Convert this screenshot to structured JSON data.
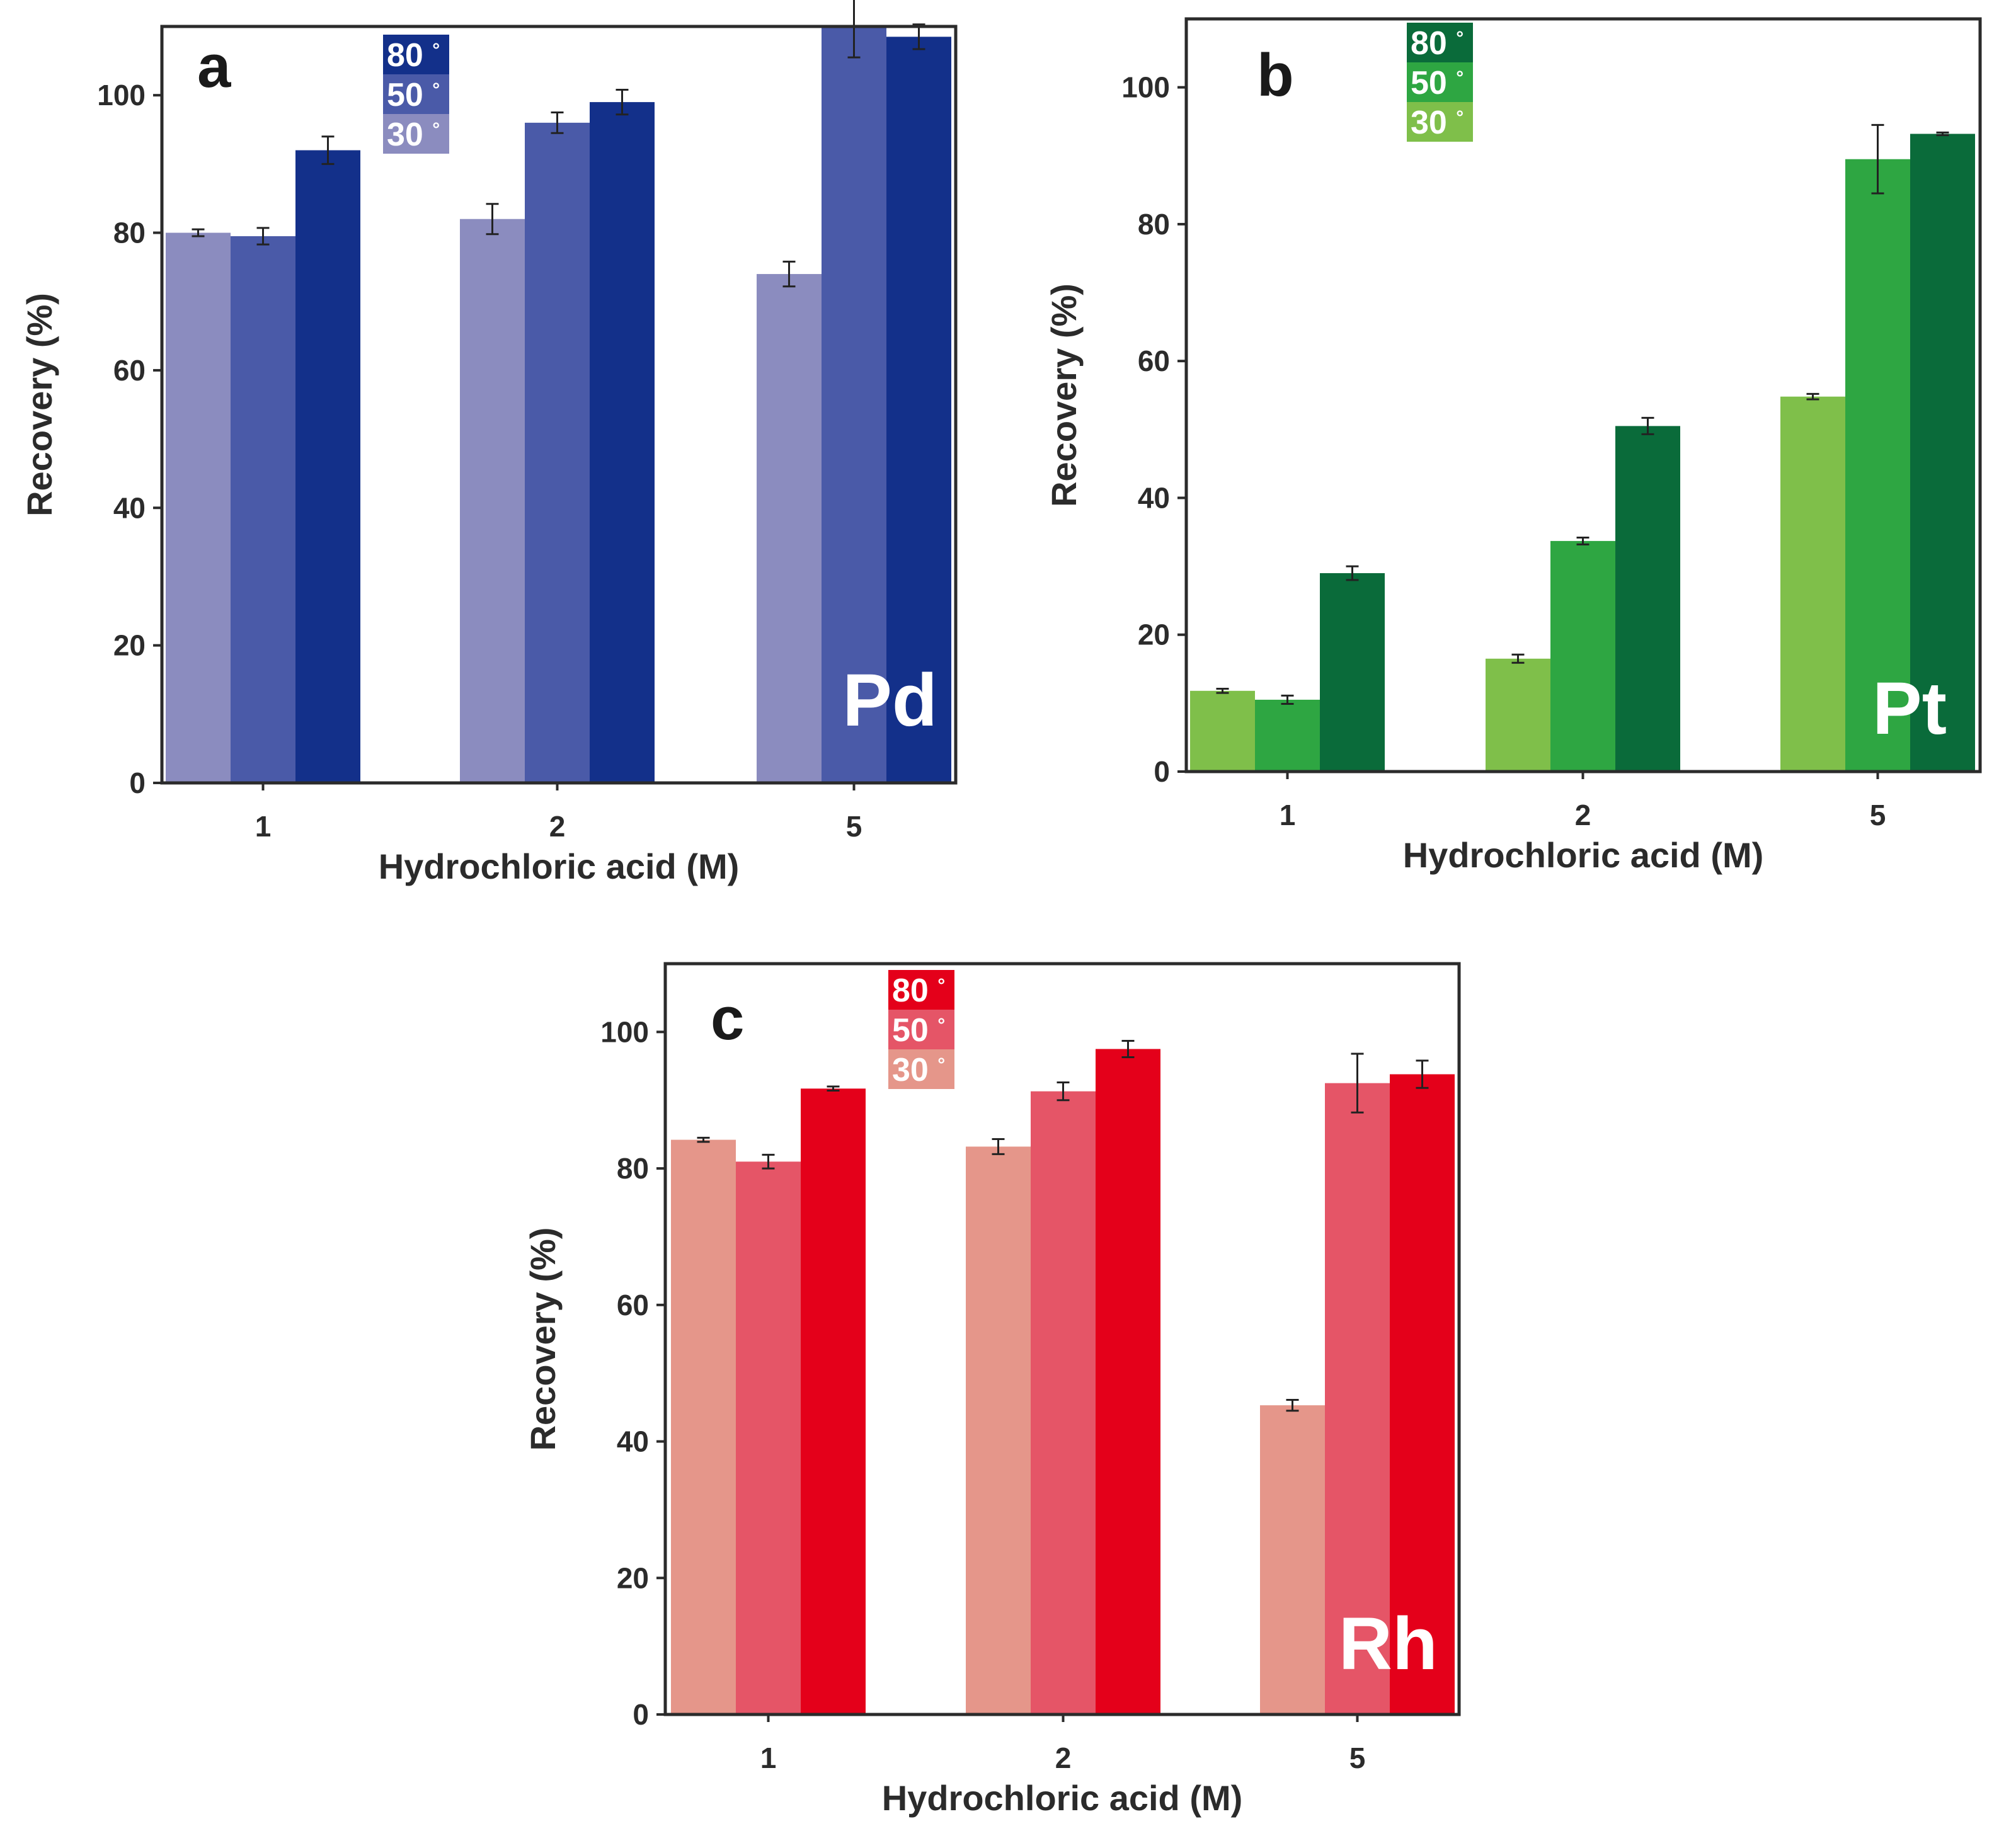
{
  "chart_data": [
    {
      "type": "bar",
      "panel": "a",
      "element": "Pd",
      "xlabel": "Hydrochloric acid (M)",
      "ylabel": "Recovery (%)",
      "categories": [
        "1",
        "2",
        "5"
      ],
      "ylim": [
        0,
        110
      ],
      "yticks": [
        "0",
        "20",
        "40",
        "60",
        "80",
        "100"
      ],
      "legend_position": "top-center",
      "series": [
        {
          "name": "30 °",
          "color": "#8b8cbf",
          "values": [
            80,
            82,
            74
          ],
          "errors": [
            0.5,
            2.2,
            1.8
          ]
        },
        {
          "name": "50 °",
          "color": "#4a5aa8",
          "values": [
            79.5,
            96,
            110
          ],
          "errors": [
            1.2,
            1.5,
            4.5
          ]
        },
        {
          "name": "80 °",
          "color": "#13308a",
          "values": [
            92,
            99,
            108.5
          ],
          "errors": [
            2,
            1.8,
            1.8
          ]
        }
      ]
    },
    {
      "type": "bar",
      "panel": "b",
      "element": "Pt",
      "xlabel": "Hydrochloric acid (M)",
      "ylabel": "Recovery (%)",
      "categories": [
        "1",
        "2",
        "5"
      ],
      "ylim": [
        0,
        110
      ],
      "yticks": [
        "0",
        "20",
        "40",
        "60",
        "80",
        "100"
      ],
      "legend_position": "top-center",
      "series": [
        {
          "name": "30 °",
          "color": "#7fbf4a",
          "values": [
            11.8,
            16.5,
            54.8
          ],
          "errors": [
            0.3,
            0.6,
            0.4
          ]
        },
        {
          "name": "50 °",
          "color": "#2ea642",
          "values": [
            10.5,
            33.7,
            89.5
          ],
          "errors": [
            0.6,
            0.5,
            5
          ]
        },
        {
          "name": "80 °",
          "color": "#0a6b3a",
          "values": [
            29,
            50.5,
            93.2
          ],
          "errors": [
            1,
            1.2,
            0.2
          ]
        }
      ]
    },
    {
      "type": "bar",
      "panel": "c",
      "element": "Rh",
      "xlabel": "Hydrochloric acid (M)",
      "ylabel": "Recovery (%)",
      "categories": [
        "1",
        "2",
        "5"
      ],
      "ylim": [
        0,
        110
      ],
      "yticks": [
        "0",
        "20",
        "40",
        "60",
        "80",
        "100"
      ],
      "legend_position": "top-center",
      "series": [
        {
          "name": "30 °",
          "color": "#e5968a",
          "values": [
            84.2,
            83.2,
            45.3
          ],
          "errors": [
            0.3,
            1.1,
            0.8
          ]
        },
        {
          "name": "50 °",
          "color": "#e55567",
          "values": [
            81,
            91.3,
            92.5
          ],
          "errors": [
            1,
            1.3,
            4.3
          ]
        },
        {
          "name": "80 °",
          "color": "#e4001a",
          "values": [
            91.7,
            97.5,
            93.8
          ],
          "errors": [
            0.3,
            1.2,
            2
          ]
        }
      ]
    }
  ]
}
